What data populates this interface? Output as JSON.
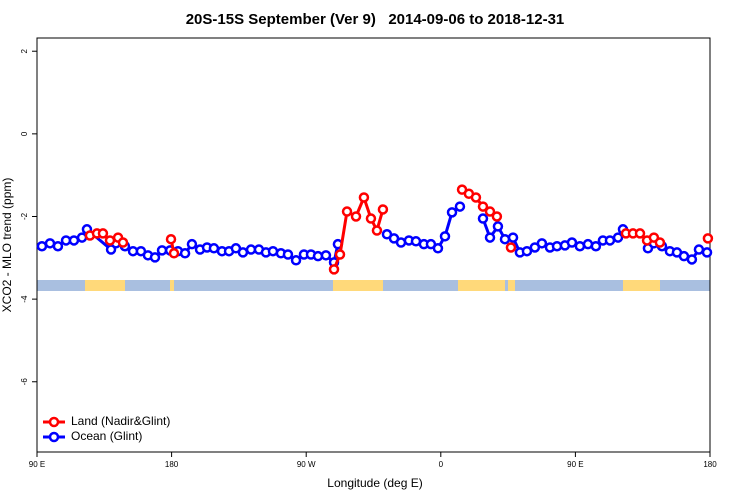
{
  "chart_data": {
    "type": "line",
    "title": "20S-15S September (Ver 9)   2014-09-06 to 2018-12-31",
    "x_label": "Longitude (deg E)",
    "y_label": "XCO2 - MLO trend (ppm)",
    "xlim": [
      90,
      540
    ],
    "ylim": [
      -7.7,
      2.32
    ],
    "xticks": [
      {
        "value": 90,
        "label": "90 E"
      },
      180,
      {
        "value": 270,
        "label": "90 W"
      },
      {
        "value": 360,
        "label": "0"
      },
      {
        "value": 450,
        "label": "90 E"
      },
      {
        "value": 540,
        "label": "180"
      }
    ],
    "yticks": [
      -6,
      -4,
      -2,
      0,
      2
    ],
    "grid": false,
    "legend": "lower left",
    "series": [
      {
        "name": "Land (Nadir&Glint)",
        "color": "#ff0000",
        "x": [
          125.4,
          130.1,
          134.1,
          138.8,
          144.2,
          147.5,
          null,
          179.6,
          181.6,
          null,
          288.6,
          292.6,
          297.3,
          303.3,
          308.6,
          313.3,
          317.3,
          321.3,
          null,
          374.2,
          378.8,
          383.5,
          388.2,
          392.9,
          397.5,
          null,
          406.9,
          null,
          483.8,
          488.5,
          493.2,
          497.9,
          502.5,
          506.5,
          null,
          538.6
        ],
        "values": [
          -2.46,
          -2.41,
          -2.41,
          -2.58,
          -2.51,
          -2.63,
          null,
          -2.55,
          -2.89,
          null,
          -3.28,
          -2.92,
          -1.88,
          -2.0,
          -1.54,
          -2.05,
          -2.34,
          -1.83,
          null,
          -1.35,
          -1.45,
          -1.54,
          -1.76,
          -1.88,
          -2.0,
          null,
          -2.75,
          null,
          -2.41,
          -2.41,
          -2.41,
          -2.58,
          -2.51,
          -2.63,
          null,
          -2.53
        ]
      },
      {
        "name": "Ocean (Glint)",
        "color": "#0000ff",
        "x": [
          93.3,
          98.7,
          104.0,
          109.4,
          114.7,
          120.1,
          123.4,
          139.5,
          142.8,
          148.8,
          154.2,
          159.5,
          164.2,
          168.9,
          173.6,
          179.0,
          184.3,
          189.0,
          193.6,
          199.0,
          203.7,
          208.3,
          213.7,
          218.4,
          223.0,
          227.7,
          233.1,
          238.4,
          243.1,
          247.8,
          253.1,
          257.8,
          263.2,
          268.5,
          273.2,
          277.9,
          283.2,
          288.6,
          291.2,
          null,
          324.0,
          328.7,
          333.4,
          338.7,
          343.4,
          348.7,
          353.4,
          358.1,
          362.8,
          367.5,
          372.8,
          null,
          388.2,
          392.9,
          398.2,
          402.9,
          408.3,
          412.9,
          417.6,
          422.9,
          427.6,
          433.0,
          437.7,
          443.0,
          447.7,
          453.0,
          458.4,
          463.7,
          468.4,
          473.1,
          478.5,
          481.8,
          null,
          498.5,
          502.5,
          507.9,
          513.2,
          517.9,
          522.6,
          527.9,
          532.6,
          538.0
        ],
        "values": [
          -2.72,
          -2.65,
          -2.72,
          -2.58,
          -2.58,
          -2.51,
          -2.31,
          -2.8,
          -2.65,
          -2.72,
          -2.84,
          -2.84,
          -2.94,
          -2.99,
          -2.82,
          -2.82,
          -2.84,
          -2.89,
          -2.67,
          -2.8,
          -2.75,
          -2.77,
          -2.84,
          -2.84,
          -2.77,
          -2.87,
          -2.8,
          -2.8,
          -2.87,
          -2.84,
          -2.89,
          -2.92,
          -3.06,
          -2.92,
          -2.92,
          -2.96,
          -2.94,
          -3.11,
          -2.67,
          null,
          -2.43,
          -2.53,
          -2.63,
          -2.58,
          -2.6,
          -2.67,
          -2.67,
          -2.77,
          -2.48,
          -1.9,
          -1.76,
          null,
          -2.05,
          -2.51,
          -2.24,
          -2.55,
          -2.51,
          -2.87,
          -2.84,
          -2.75,
          -2.65,
          -2.75,
          -2.72,
          -2.7,
          -2.63,
          -2.72,
          -2.67,
          -2.72,
          -2.58,
          -2.58,
          -2.51,
          -2.31,
          null,
          -2.77,
          -2.65,
          -2.72,
          -2.84,
          -2.87,
          -2.96,
          -3.04,
          -2.8,
          -2.87
        ]
      }
    ]
  }
}
